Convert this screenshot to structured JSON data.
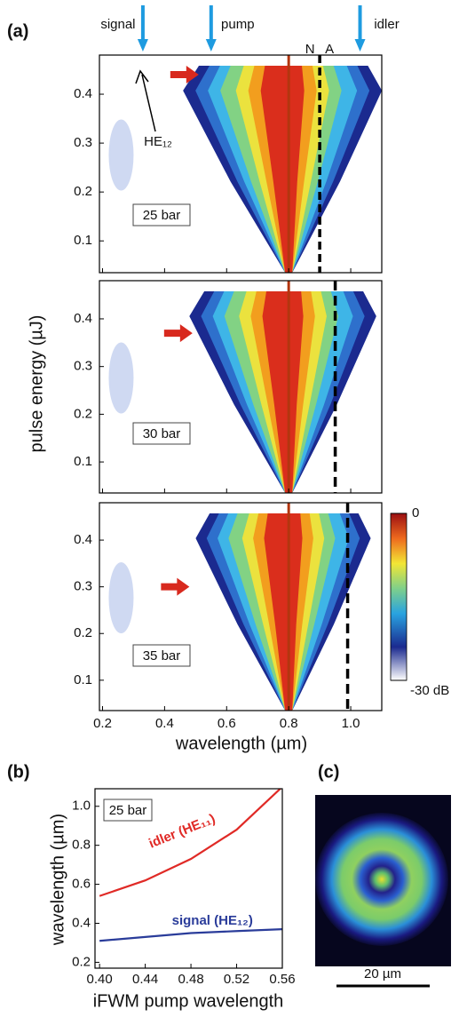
{
  "chart_data": [
    {
      "type": "heatmap",
      "panel_label": "(a)",
      "xlabel": "wavelength (µm)",
      "ylabel": "pulse energy (µJ)",
      "xlim": [
        0.19,
        1.1
      ],
      "xticks": [
        0.2,
        0.4,
        0.6,
        0.8,
        {
          "value": 1.0,
          "label": "1.0"
        }
      ],
      "ylim": [
        0.035,
        0.48
      ],
      "yticks": [
        0.1,
        0.2,
        0.3,
        0.4
      ],
      "top_arrows": [
        {
          "label": "signal",
          "x": 0.33
        },
        {
          "label": "pump",
          "x": 0.55
        },
        {
          "label": "idler",
          "x": 1.03
        }
      ],
      "pump_line": 0.8,
      "line_labels": [
        "N",
        "A"
      ],
      "mode_annotation": "HE₁₂",
      "subplots": [
        {
          "label": "25 bar",
          "zero_dispersion": 0.9,
          "arrow_x": 0.51,
          "arrow_energy": 0.44
        },
        {
          "label": "30 bar",
          "zero_dispersion": 0.95,
          "arrow_x": 0.49,
          "arrow_energy": 0.37
        },
        {
          "label": "35 bar",
          "zero_dispersion": 0.99,
          "arrow_x": 0.48,
          "arrow_energy": 0.3
        }
      ],
      "colorbar": {
        "lim": [
          -30,
          0
        ],
        "top_label": "0",
        "bottom_label": "-30 dB"
      }
    },
    {
      "type": "line",
      "panel_label": "(b)",
      "xlabel": "iFWM pump wavelength",
      "ylabel": "wavelength (µm)",
      "box_label": "25 bar",
      "xlim": [
        0.396,
        0.56
      ],
      "xticks": [
        {
          "value": 0.4,
          "label": "0.40"
        },
        {
          "value": 0.44,
          "label": "0.44"
        },
        {
          "value": 0.48,
          "label": "0.48"
        },
        {
          "value": 0.52,
          "label": "0.52"
        },
        {
          "value": 0.56,
          "label": "0.56"
        }
      ],
      "ylim": [
        0.17,
        1.09
      ],
      "yticks": [
        0.2,
        0.4,
        0.6,
        0.8,
        {
          "value": 1.0,
          "label": "1.0"
        }
      ],
      "x": [
        0.4,
        0.44,
        0.48,
        0.52,
        0.56
      ],
      "series": [
        {
          "name": "idler (HE₁₁)",
          "color": "#e02a26",
          "values": [
            0.54,
            0.62,
            0.73,
            0.88,
            1.1
          ]
        },
        {
          "name": "signal (HE₁₂)",
          "color": "#2a3c9a",
          "values": [
            0.31,
            0.33,
            0.35,
            0.36,
            0.37
          ]
        }
      ]
    },
    {
      "type": "image",
      "panel_label": "(c)",
      "scale_label": "20 µm"
    }
  ]
}
